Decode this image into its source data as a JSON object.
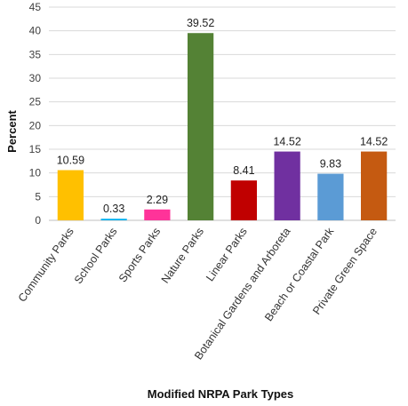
{
  "chart_data": {
    "type": "bar",
    "title": "",
    "xlabel": "Modified NRPA Park Types",
    "ylabel": "Percent",
    "ylim": [
      0,
      45
    ],
    "yticks": [
      0,
      5,
      10,
      15,
      20,
      25,
      30,
      35,
      40,
      45
    ],
    "grid": true,
    "legend": "none",
    "categories": [
      "Community Parks",
      "School Parks",
      "Sports Parks",
      "Nature Parks",
      "Linear Parks",
      "Botanical Gardens and Arboreta",
      "Beach or Coastal Park",
      "Private Green Space"
    ],
    "values": [
      10.59,
      0.33,
      2.29,
      39.52,
      8.41,
      14.52,
      9.83,
      14.52
    ],
    "value_labels": [
      "10.59",
      "0.33",
      "2.29",
      "39.52",
      "8.41",
      "14.52",
      "9.83",
      "14.52"
    ],
    "colors": [
      "#FFC000",
      "#00B0F0",
      "#FF3399",
      "#548235",
      "#C00000",
      "#7030A0",
      "#5B9BD5",
      "#C55A11"
    ]
  }
}
